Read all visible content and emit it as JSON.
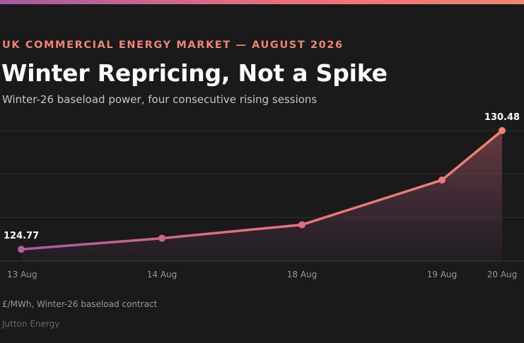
{
  "header": {
    "kicker": "UK COMMERCIAL ENERGY MARKET — AUGUST 2026",
    "title": "Winter Repricing, Not a Spike",
    "subtitle": "Winter-26 baseload power, four consecutive rising sessions"
  },
  "footer": {
    "note": "£/MWh, Winter-26 baseload contract",
    "source": "Jutton Energy"
  },
  "colors": {
    "background": "#1b1a1b",
    "line_start": "#a45aa3",
    "line_end": "#ef8470",
    "kicker": "#ef8470"
  },
  "chart_data": {
    "type": "line",
    "x": [
      "13 Aug",
      "14 Aug",
      "18 Aug",
      "19 Aug",
      "20 Aug"
    ],
    "values": [
      124.77,
      125.3,
      125.95,
      128.1,
      130.48
    ],
    "data_labels": [
      {
        "index": 0,
        "text": "124.77"
      },
      {
        "index": 4,
        "text": "130.48"
      }
    ],
    "ylim": [
      124.2,
      130.48
    ],
    "grid": true,
    "area_fill": true
  }
}
